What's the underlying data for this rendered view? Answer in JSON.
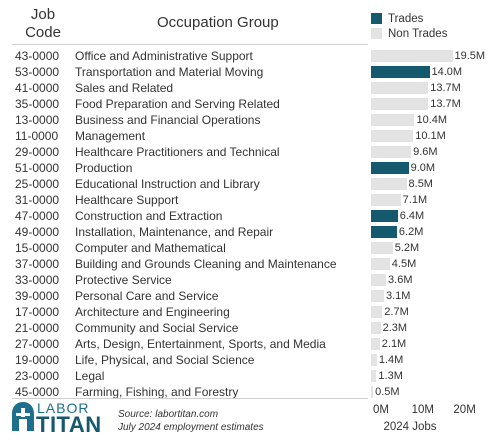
{
  "header": {
    "code_line1": "Job",
    "code_line2": "Code",
    "occupation": "Occupation Group"
  },
  "legend": [
    {
      "label": "Trades",
      "color": "#15596e"
    },
    {
      "label": "Non Trades",
      "color": "#e3e3e3"
    }
  ],
  "rows": [
    {
      "code": "43-0000",
      "name": "Office and Administrative Support",
      "value": 19.5,
      "label": "19.5M",
      "group": "Non Trades"
    },
    {
      "code": "53-0000",
      "name": "Transportation and Material Moving",
      "value": 14.0,
      "label": "14.0M",
      "group": "Trades"
    },
    {
      "code": "41-0000",
      "name": "Sales and Related",
      "value": 13.7,
      "label": "13.7M",
      "group": "Non Trades"
    },
    {
      "code": "35-0000",
      "name": "Food Preparation and Serving Related",
      "value": 13.7,
      "label": "13.7M",
      "group": "Non Trades"
    },
    {
      "code": "13-0000",
      "name": "Business and Financial Operations",
      "value": 10.4,
      "label": "10.4M",
      "group": "Non Trades"
    },
    {
      "code": "11-0000",
      "name": "Management",
      "value": 10.1,
      "label": "10.1M",
      "group": "Non Trades"
    },
    {
      "code": "29-0000",
      "name": "Healthcare Practitioners and Technical",
      "value": 9.6,
      "label": "9.6M",
      "group": "Non Trades"
    },
    {
      "code": "51-0000",
      "name": "Production",
      "value": 9.0,
      "label": "9.0M",
      "group": "Trades"
    },
    {
      "code": "25-0000",
      "name": "Educational Instruction and Library",
      "value": 8.5,
      "label": "8.5M",
      "group": "Non Trades"
    },
    {
      "code": "31-0000",
      "name": "Healthcare Support",
      "value": 7.1,
      "label": "7.1M",
      "group": "Non Trades"
    },
    {
      "code": "47-0000",
      "name": "Construction and Extraction",
      "value": 6.4,
      "label": "6.4M",
      "group": "Trades"
    },
    {
      "code": "49-0000",
      "name": "Installation, Maintenance, and Repair",
      "value": 6.2,
      "label": "6.2M",
      "group": "Trades"
    },
    {
      "code": "15-0000",
      "name": "Computer and Mathematical",
      "value": 5.2,
      "label": "5.2M",
      "group": "Non Trades"
    },
    {
      "code": "37-0000",
      "name": "Building and Grounds Cleaning and Maintenance",
      "value": 4.5,
      "label": "4.5M",
      "group": "Non Trades"
    },
    {
      "code": "33-0000",
      "name": "Protective Service",
      "value": 3.6,
      "label": "3.6M",
      "group": "Non Trades"
    },
    {
      "code": "39-0000",
      "name": "Personal Care and Service",
      "value": 3.1,
      "label": "3.1M",
      "group": "Non Trades"
    },
    {
      "code": "17-0000",
      "name": "Architecture and Engineering",
      "value": 2.7,
      "label": "2.7M",
      "group": "Non Trades"
    },
    {
      "code": "21-0000",
      "name": "Community and Social Service",
      "value": 2.3,
      "label": "2.3M",
      "group": "Non Trades"
    },
    {
      "code": "27-0000",
      "name": "Arts, Design, Entertainment, Sports, and Media",
      "value": 2.1,
      "label": "2.1M",
      "group": "Non Trades"
    },
    {
      "code": "19-0000",
      "name": "Life, Physical, and Social Science",
      "value": 1.4,
      "label": "1.4M",
      "group": "Non Trades"
    },
    {
      "code": "23-0000",
      "name": "Legal",
      "value": 1.3,
      "label": "1.3M",
      "group": "Non Trades"
    },
    {
      "code": "45-0000",
      "name": "Farming, Fishing, and Forestry",
      "value": 0.5,
      "label": "0.5M",
      "group": "Non Trades"
    }
  ],
  "axis": {
    "ticks": [
      "0M",
      "10M",
      "20M"
    ],
    "tick_values": [
      0,
      10,
      20
    ],
    "label": "2024 Jobs",
    "xlim": [
      0,
      20
    ]
  },
  "logo": {
    "line1": "LABOR",
    "line2": "TITAN"
  },
  "source": {
    "line1": "Source: labortitan.com",
    "line2": "July 2024 employment estimates"
  },
  "chart_data": {
    "type": "bar",
    "orientation": "horizontal",
    "categories": [
      "Office and Administrative Support",
      "Transportation and Material Moving",
      "Sales and Related",
      "Food Preparation and Serving Related",
      "Business and Financial Operations",
      "Management",
      "Healthcare Practitioners and Technical",
      "Production",
      "Educational Instruction and Library",
      "Healthcare Support",
      "Construction and Extraction",
      "Installation, Maintenance, and Repair",
      "Computer and Mathematical",
      "Building and Grounds Cleaning and Maintenance",
      "Protective Service",
      "Personal Care and Service",
      "Architecture and Engineering",
      "Community and Social Service",
      "Arts, Design, Entertainment, Sports, and Media",
      "Life, Physical, and Social Science",
      "Legal",
      "Farming, Fishing, and Forestry"
    ],
    "values": [
      19.5,
      14.0,
      13.7,
      13.7,
      10.4,
      10.1,
      9.6,
      9.0,
      8.5,
      7.1,
      6.4,
      6.2,
      5.2,
      4.5,
      3.6,
      3.1,
      2.7,
      2.3,
      2.1,
      1.4,
      1.3,
      0.5
    ],
    "xlabel": "2024 Jobs",
    "xlim": [
      0,
      20
    ],
    "legend": [
      "Trades",
      "Non Trades"
    ],
    "legend_position": "top-right",
    "grid": false
  }
}
